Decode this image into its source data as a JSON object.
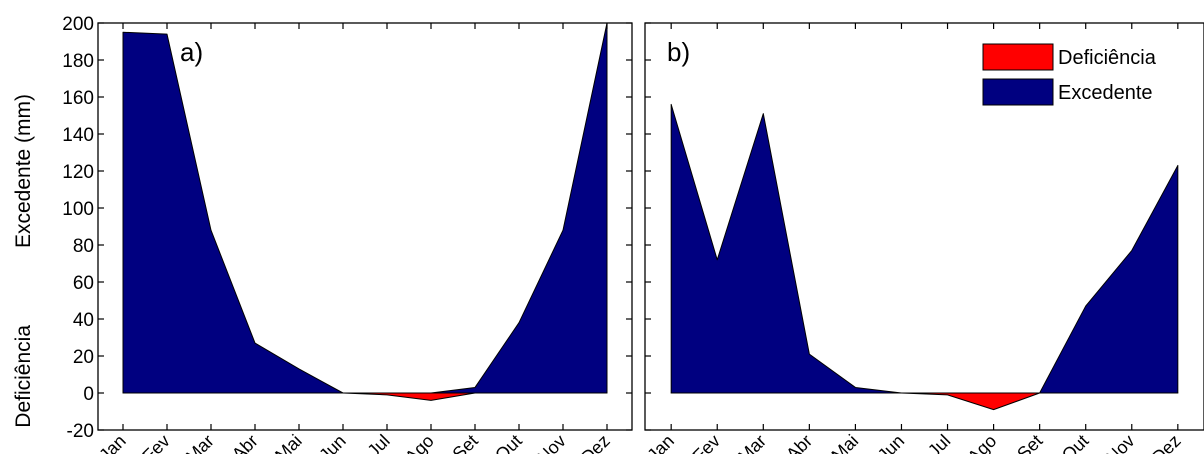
{
  "chart_data": [
    {
      "type": "area",
      "panel_label": "a)",
      "categories": [
        "Jan",
        "Fev",
        "Mar",
        "Abr",
        "Mai",
        "Jun",
        "Jul",
        "Ago",
        "Set",
        "Out",
        "Nov",
        "Dez"
      ],
      "series": [
        {
          "name": "Deficiência",
          "color": "#ff0000",
          "values": [
            0,
            0,
            0,
            0,
            0,
            0,
            -1,
            -4,
            0,
            0,
            0,
            0
          ]
        },
        {
          "name": "Excedente",
          "color": "#000080",
          "values": [
            195,
            194,
            88,
            27,
            13,
            0,
            0,
            0,
            3,
            38,
            88,
            200
          ]
        }
      ],
      "ylabel_upper": "Excedente (mm)",
      "ylabel_lower": "Deficiência",
      "ylim": [
        -20,
        200
      ],
      "yticks": [
        -20,
        0,
        20,
        40,
        60,
        80,
        100,
        120,
        140,
        160,
        180,
        200
      ]
    },
    {
      "type": "area",
      "panel_label": "b)",
      "categories": [
        "Jan",
        "Fev",
        "Mar",
        "Abr",
        "Mai",
        "Jun",
        "Jul",
        "Ago",
        "Set",
        "Out",
        "Nov",
        "Dez"
      ],
      "series": [
        {
          "name": "Deficiência",
          "color": "#ff0000",
          "values": [
            0,
            0,
            0,
            0,
            0,
            0,
            -1,
            -9,
            0,
            0,
            0,
            0
          ]
        },
        {
          "name": "Excedente",
          "color": "#000080",
          "values": [
            156,
            72,
            151,
            21,
            3,
            0,
            0,
            0,
            0,
            47,
            77,
            123
          ]
        }
      ],
      "ylim": [
        -20,
        200
      ],
      "legend": {
        "position": "top-right",
        "entries": [
          "Deficiência",
          "Excedente"
        ]
      }
    }
  ]
}
